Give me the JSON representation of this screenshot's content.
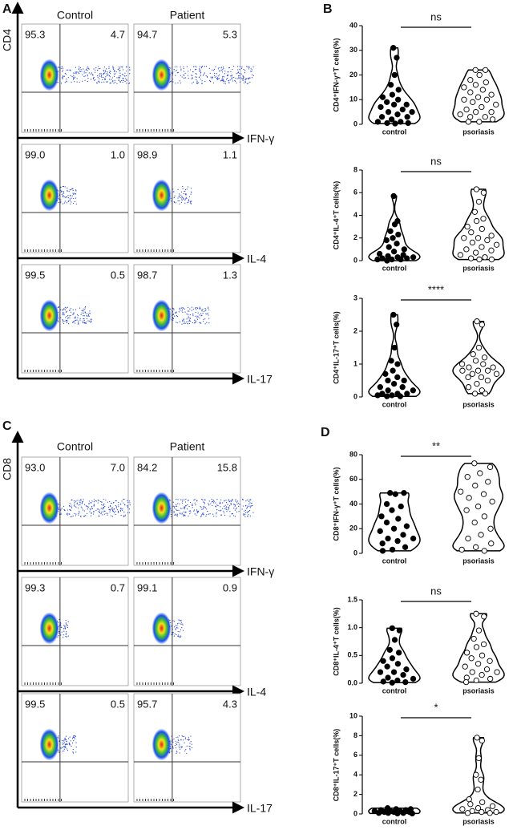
{
  "panel_labels": {
    "a": "A",
    "b": "B",
    "c": "C",
    "d": "D"
  },
  "flow": [
    {
      "y_axis": "CD4",
      "columns": [
        "Control",
        "Patient"
      ],
      "rows": [
        {
          "marker": "IFN-γ",
          "control": [
            "95.3",
            "4.7"
          ],
          "patient": [
            "94.7",
            "5.3"
          ]
        },
        {
          "marker": "IL-4",
          "control": [
            "99.0",
            "1.0"
          ],
          "patient": [
            "98.9",
            "1.1"
          ]
        },
        {
          "marker": "IL-17",
          "control": [
            "99.5",
            "0.5"
          ],
          "patient": [
            "98.7",
            "1.3"
          ]
        }
      ]
    },
    {
      "y_axis": "CD8",
      "columns": [
        "Control",
        "Patient"
      ],
      "rows": [
        {
          "marker": "IFN-γ",
          "control": [
            "93.0",
            "7.0"
          ],
          "patient": [
            "84.2",
            "15.8"
          ]
        },
        {
          "marker": "IL-4",
          "control": [
            "99.3",
            "0.7"
          ],
          "patient": [
            "99.1",
            "0.9"
          ]
        },
        {
          "marker": "IL-17",
          "control": [
            "99.5",
            "0.5"
          ],
          "patient": [
            "95.7",
            "4.3"
          ]
        }
      ]
    }
  ],
  "chart_data": [
    {
      "type": "violin",
      "y_label": "CD4⁺IFN-γ⁺T cells(%)",
      "significance": "ns",
      "categories": [
        "control",
        "psoriasis"
      ],
      "groups": [
        {
          "values": [
            31,
            27,
            20,
            16,
            14,
            12,
            11,
            10,
            9,
            8,
            8,
            7,
            6,
            5,
            5,
            4,
            3,
            3,
            2,
            1,
            1,
            0.5,
            0.5,
            0.3
          ]
        },
        {
          "values": [
            22,
            22,
            20,
            18,
            17,
            16,
            15,
            14,
            13,
            12,
            11,
            10,
            10,
            9,
            8,
            7,
            6,
            5,
            5,
            4,
            3,
            3,
            2,
            1,
            1
          ]
        }
      ],
      "ylim": [
        0,
        40
      ],
      "yticks": [
        0,
        10,
        20,
        30,
        40
      ]
    },
    {
      "type": "violin",
      "y_label": "CD4⁺IL-4⁺T cells(%)",
      "significance": "ns",
      "categories": [
        "control",
        "psoriasis"
      ],
      "groups": [
        {
          "values": [
            5.7,
            3.5,
            3.2,
            2.6,
            2.3,
            2.0,
            1.8,
            1.5,
            1.2,
            1.0,
            0.8,
            0.6,
            0.5,
            0.4,
            0.3,
            0.3,
            0.2,
            0.2,
            0.1,
            0.1,
            0.1,
            0.0
          ]
        },
        {
          "values": [
            6.3,
            6.0,
            5.2,
            4.3,
            3.7,
            3.5,
            3.0,
            2.8,
            2.5,
            2.2,
            2.0,
            2.0,
            1.8,
            1.6,
            1.4,
            1.2,
            1.0,
            0.9,
            0.7,
            0.5,
            0.3,
            0.2,
            0.1,
            0.1
          ]
        }
      ],
      "ylim": [
        0,
        8
      ],
      "yticks": [
        0,
        2,
        4,
        6,
        8
      ]
    },
    {
      "type": "violin",
      "y_label": "CD4⁺IL-17⁺T cells(%)",
      "significance": "****",
      "categories": [
        "control",
        "psoriasis"
      ],
      "groups": [
        {
          "values": [
            2.5,
            2.2,
            1.5,
            1.1,
            1.0,
            0.8,
            0.7,
            0.6,
            0.5,
            0.5,
            0.4,
            0.3,
            0.3,
            0.2,
            0.2,
            0.1,
            0.1,
            0.1,
            0.05,
            0.05,
            0.02,
            0.02
          ]
        },
        {
          "values": [
            2.3,
            2.2,
            1.5,
            1.3,
            1.2,
            1.1,
            1.0,
            1.0,
            0.9,
            0.9,
            0.8,
            0.8,
            0.8,
            0.7,
            0.7,
            0.6,
            0.6,
            0.5,
            0.4,
            0.3,
            0.2,
            0.1,
            0.1
          ]
        }
      ],
      "ylim": [
        0,
        3
      ],
      "yticks": [
        0,
        1,
        2,
        3
      ]
    },
    {
      "type": "violin",
      "y_label": "CD8⁺IFN-γ⁺T cells(%)",
      "significance": "**",
      "categories": [
        "control",
        "psoriasis"
      ],
      "groups": [
        {
          "values": [
            49,
            49,
            48,
            40,
            38,
            35,
            30,
            28,
            25,
            22,
            20,
            18,
            15,
            12,
            12,
            10,
            8,
            5,
            3,
            2
          ]
        },
        {
          "values": [
            73,
            70,
            65,
            62,
            58,
            55,
            50,
            48,
            45,
            42,
            38,
            35,
            30,
            25,
            20,
            15,
            12,
            8,
            5,
            3,
            2
          ]
        }
      ],
      "ylim": [
        0,
        80
      ],
      "yticks": [
        0,
        20,
        40,
        60,
        80
      ]
    },
    {
      "type": "violin",
      "y_label": "CD8⁺IL-4⁺T cells(%)",
      "significance": "ns",
      "categories": [
        "control",
        "psoriasis"
      ],
      "groups": [
        {
          "values": [
            0.99,
            0.95,
            0.78,
            0.6,
            0.55,
            0.45,
            0.4,
            0.35,
            0.3,
            0.25,
            0.2,
            0.2,
            0.15,
            0.1,
            0.08,
            0.05,
            0.03,
            0.02,
            0.01
          ]
        },
        {
          "values": [
            1.25,
            1.2,
            0.95,
            0.8,
            0.7,
            0.65,
            0.55,
            0.5,
            0.45,
            0.4,
            0.35,
            0.3,
            0.25,
            0.2,
            0.2,
            0.15,
            0.1,
            0.08,
            0.05,
            0.02
          ]
        }
      ],
      "ylim": [
        0,
        1.5
      ],
      "yticks": [
        {
          "value": 0,
          "label": "0.0"
        },
        0.5,
        {
          "value": 1,
          "label": "1.0"
        },
        1.5
      ]
    },
    {
      "type": "violin",
      "y_label": "CD8⁺IL-17⁺T cells(%)",
      "significance": "*",
      "categories": [
        "control",
        "psoriasis"
      ],
      "groups": [
        {
          "values": [
            0.6,
            0.5,
            0.5,
            0.4,
            0.4,
            0.3,
            0.3,
            0.3,
            0.2,
            0.2,
            0.2,
            0.1,
            0.1,
            0.1,
            0.05,
            0.05
          ]
        },
        {
          "values": [
            7.8,
            7.5,
            5.7,
            4.0,
            3.5,
            2.5,
            1.5,
            1.2,
            1.0,
            0.8,
            0.6,
            0.5,
            0.4,
            0.3,
            0.2,
            0.2,
            0.1,
            0.1
          ]
        }
      ],
      "ylim": [
        0,
        10
      ],
      "yticks": [
        0,
        2,
        4,
        6,
        8,
        10
      ]
    }
  ]
}
